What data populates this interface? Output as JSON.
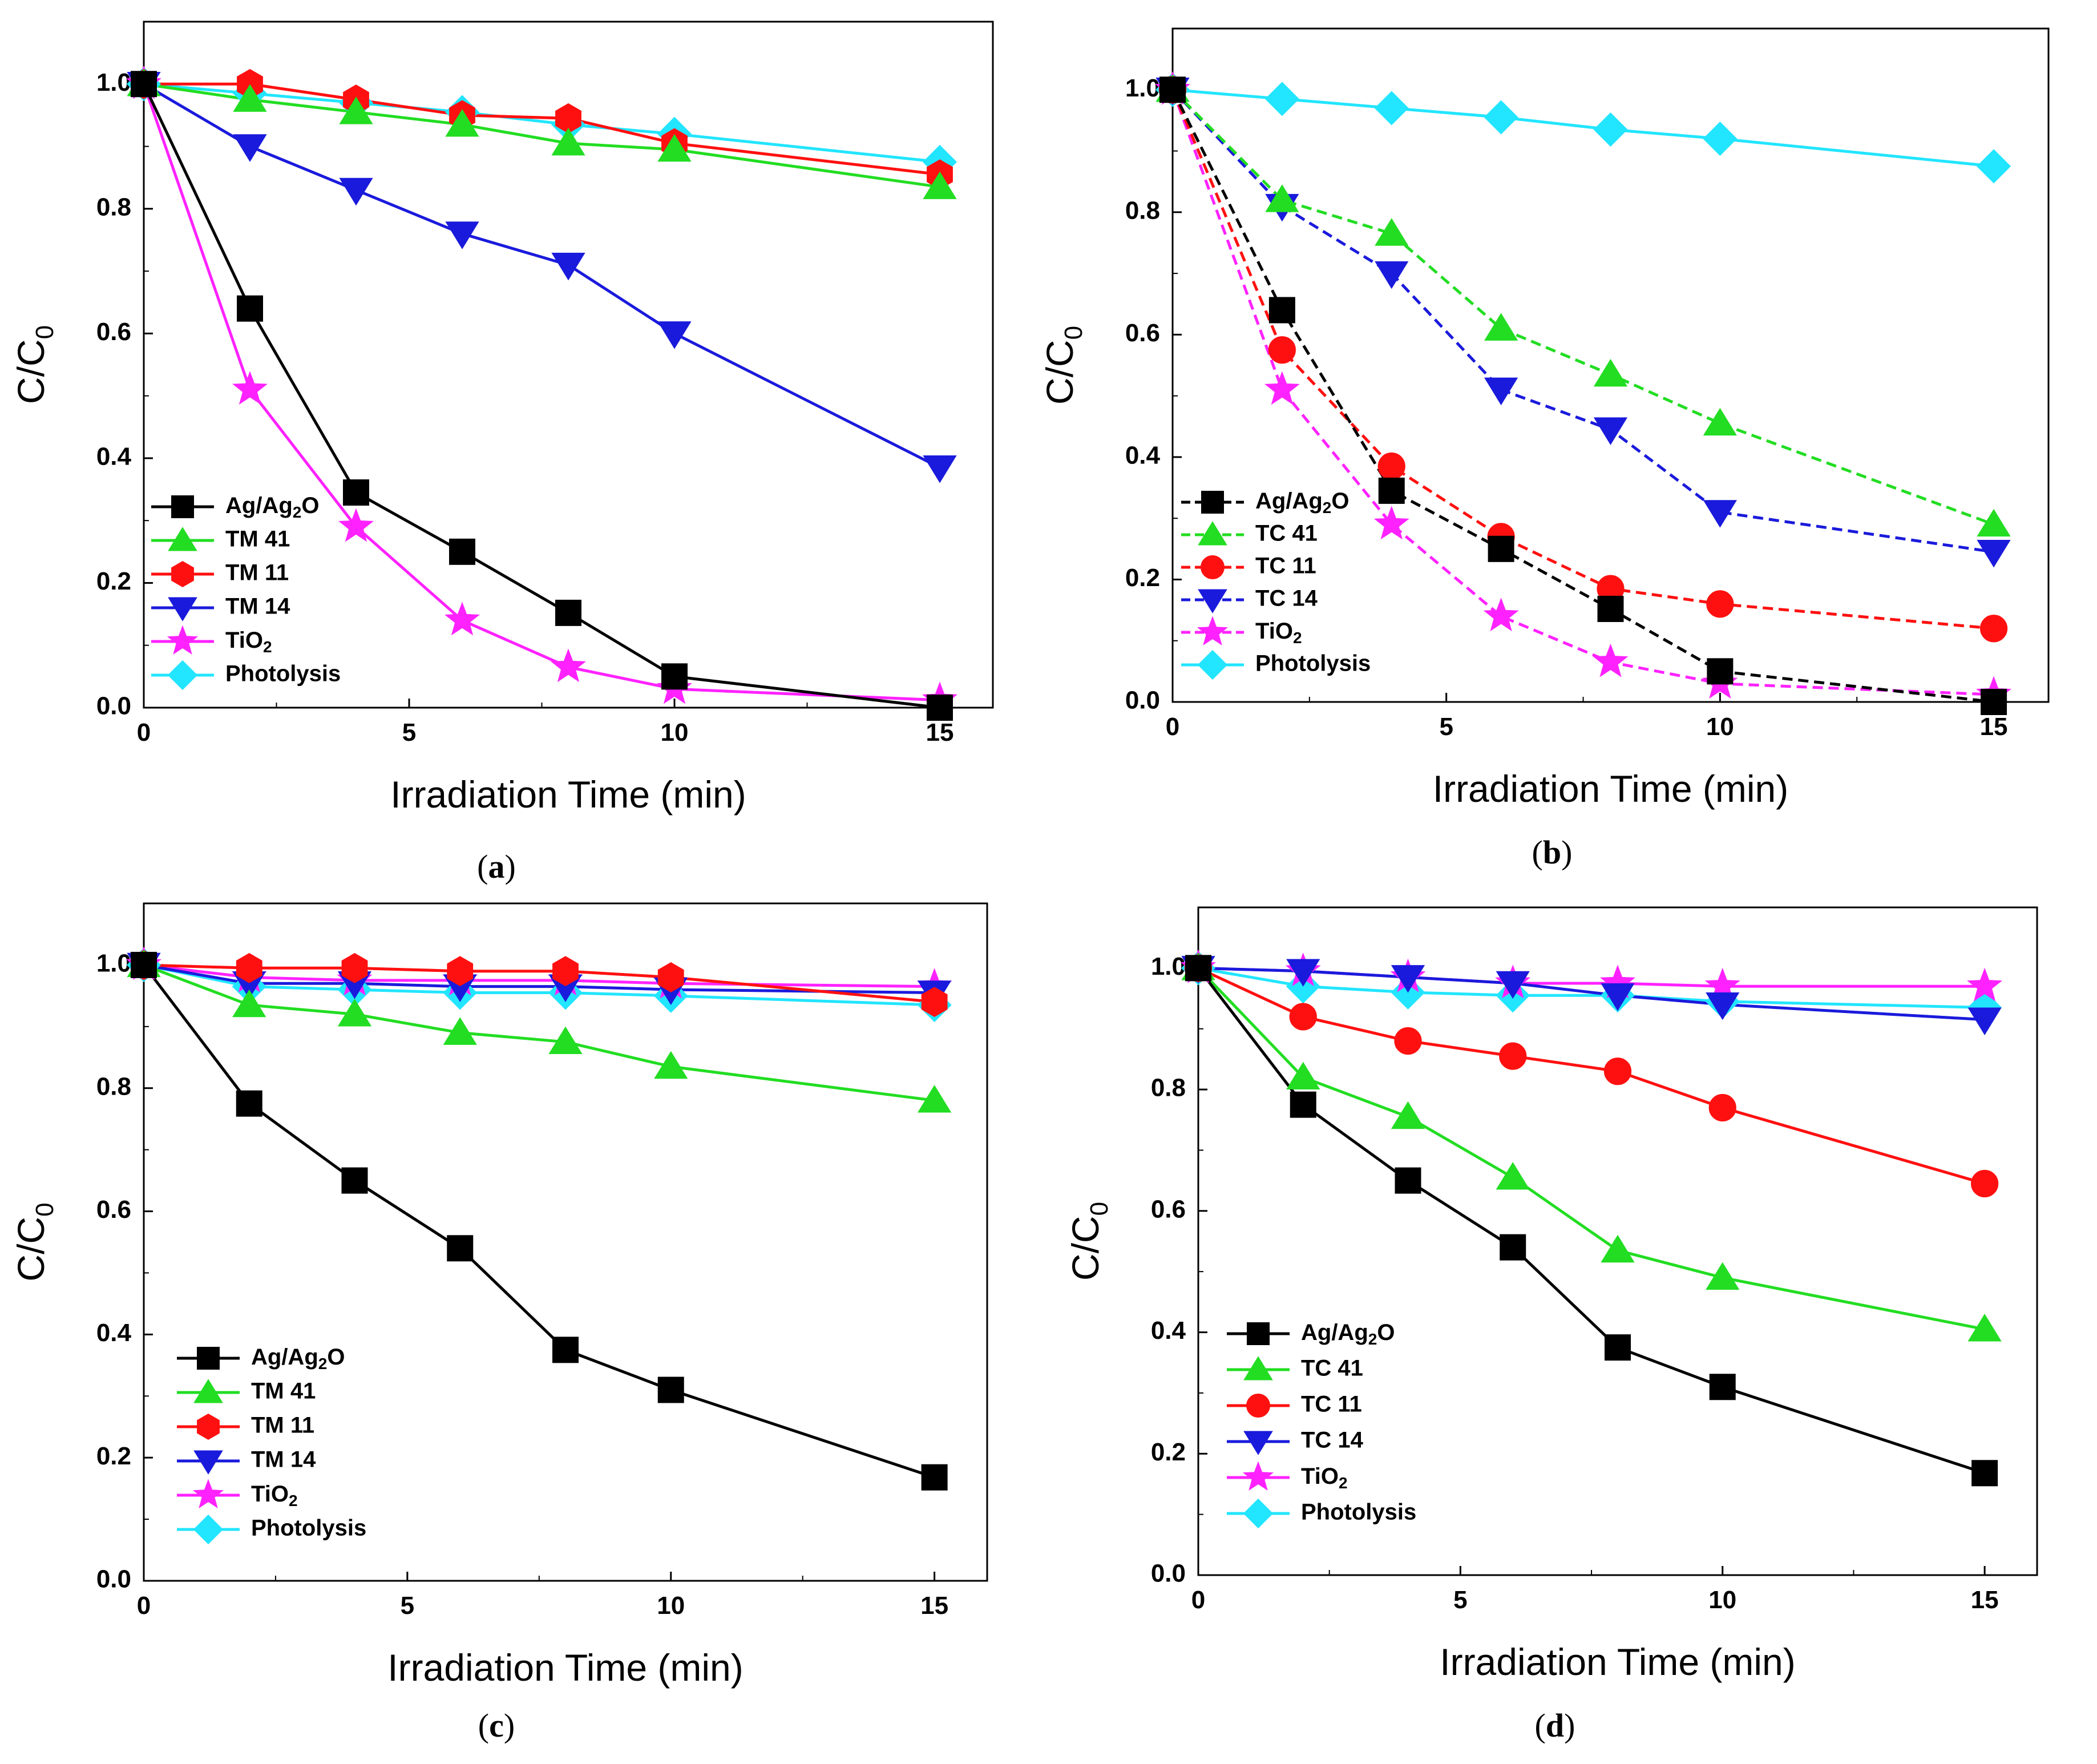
{
  "figure": {
    "background": "#ffffff"
  },
  "chart_data": [
    {
      "type": "line",
      "panel_label": "a",
      "xlabel": "Irradiation Time (min)",
      "ylabel": "C/C0",
      "xlim": [
        0,
        16
      ],
      "ylim": [
        0,
        1.1
      ],
      "xticks": [
        0,
        5,
        10,
        15
      ],
      "yticks": [
        0.0,
        0.2,
        0.4,
        0.6,
        0.8,
        1.0
      ],
      "legend_position": "bottom-left",
      "x": [
        0,
        2,
        4,
        6,
        8,
        10,
        15
      ],
      "series": [
        {
          "name": "Ag/Ag2O",
          "color": "#000000",
          "marker": "square",
          "values": [
            1.0,
            0.64,
            0.345,
            0.25,
            0.152,
            0.05,
            0.0
          ]
        },
        {
          "name": "TM 41",
          "color": "#22dd22",
          "marker": "triangle-up",
          "values": [
            1.0,
            0.975,
            0.955,
            0.935,
            0.905,
            0.895,
            0.835
          ]
        },
        {
          "name": "TM 11",
          "color": "#ff1010",
          "marker": "hexagon",
          "values": [
            1.0,
            1.0,
            0.975,
            0.95,
            0.945,
            0.905,
            0.855
          ]
        },
        {
          "name": "TM 14",
          "color": "#1a1adc",
          "marker": "triangle-down",
          "values": [
            1.0,
            0.9,
            0.83,
            0.76,
            0.71,
            0.6,
            0.385
          ]
        },
        {
          "name": "TiO2",
          "color": "#ff22ff",
          "marker": "star",
          "values": [
            1.0,
            0.51,
            0.29,
            0.14,
            0.065,
            0.03,
            0.012
          ]
        },
        {
          "name": "Photolysis",
          "color": "#22e5ff",
          "marker": "diamond",
          "values": [
            1.0,
            0.985,
            0.97,
            0.955,
            0.935,
            0.92,
            0.875
          ]
        }
      ]
    },
    {
      "type": "line",
      "panel_label": "b",
      "xlabel": "Irradiation Time (min)",
      "ylabel": "C/C0",
      "xlim": [
        0,
        16
      ],
      "ylim": [
        0,
        1.1
      ],
      "xticks": [
        0,
        5,
        10,
        15
      ],
      "yticks": [
        0.0,
        0.2,
        0.4,
        0.6,
        0.8,
        1.0
      ],
      "legend_position": "bottom-left",
      "x": [
        0,
        2,
        4,
        6,
        8,
        10,
        15
      ],
      "series": [
        {
          "name": "Ag/Ag2O",
          "color": "#000000",
          "marker": "square",
          "dashed": true,
          "values": [
            1.0,
            0.64,
            0.345,
            0.25,
            0.152,
            0.05,
            0.0
          ]
        },
        {
          "name": "TC 41",
          "color": "#22dd22",
          "marker": "triangle-up",
          "dashed": true,
          "values": [
            1.0,
            0.82,
            0.765,
            0.61,
            0.535,
            0.455,
            0.29
          ]
        },
        {
          "name": "TC 11",
          "color": "#ff1010",
          "marker": "circle",
          "dashed": true,
          "values": [
            1.0,
            0.575,
            0.385,
            0.27,
            0.185,
            0.16,
            0.12
          ]
        },
        {
          "name": "TC 14",
          "color": "#1a1adc",
          "marker": "triangle-down",
          "dashed": true,
          "values": [
            1.0,
            0.81,
            0.7,
            0.51,
            0.445,
            0.31,
            0.245
          ]
        },
        {
          "name": "TiO2",
          "color": "#ff22ff",
          "marker": "star",
          "dashed": true,
          "values": [
            1.0,
            0.51,
            0.29,
            0.14,
            0.065,
            0.03,
            0.012
          ]
        },
        {
          "name": "Photolysis",
          "color": "#22e5ff",
          "marker": "diamond",
          "values": [
            1.0,
            0.985,
            0.97,
            0.955,
            0.935,
            0.92,
            0.875
          ]
        }
      ]
    },
    {
      "type": "line",
      "panel_label": "c",
      "xlabel": "Irradiation Time (min)",
      "ylabel": "C/C0",
      "xlim": [
        0,
        16
      ],
      "ylim": [
        0,
        1.1
      ],
      "xticks": [
        0,
        5,
        10,
        15
      ],
      "yticks": [
        0.0,
        0.2,
        0.4,
        0.6,
        0.8,
        1.0
      ],
      "legend_position": "bottom-left",
      "x": [
        0,
        2,
        4,
        6,
        8,
        10,
        15
      ],
      "series": [
        {
          "name": "Ag/Ag2O",
          "color": "#000000",
          "marker": "square",
          "values": [
            1.0,
            0.775,
            0.65,
            0.54,
            0.375,
            0.31,
            0.168
          ]
        },
        {
          "name": "TM 41",
          "color": "#22dd22",
          "marker": "triangle-up",
          "values": [
            1.0,
            0.935,
            0.92,
            0.89,
            0.875,
            0.835,
            0.78
          ]
        },
        {
          "name": "TM 11",
          "color": "#ff1010",
          "marker": "hexagon",
          "values": [
            1.0,
            0.995,
            0.995,
            0.99,
            0.99,
            0.98,
            0.94
          ]
        },
        {
          "name": "TM 14",
          "color": "#1a1adc",
          "marker": "triangle-down",
          "values": [
            1.0,
            0.97,
            0.97,
            0.965,
            0.965,
            0.96,
            0.955
          ]
        },
        {
          "name": "TiO2",
          "color": "#ff22ff",
          "marker": "star",
          "values": [
            1.0,
            0.98,
            0.975,
            0.975,
            0.975,
            0.97,
            0.965
          ]
        },
        {
          "name": "Photolysis",
          "color": "#22e5ff",
          "marker": "diamond",
          "values": [
            1.0,
            0.965,
            0.96,
            0.955,
            0.955,
            0.95,
            0.935
          ]
        }
      ]
    },
    {
      "type": "line",
      "panel_label": "d",
      "xlabel": "Irradiation Time (min)",
      "ylabel": "C/C0",
      "xlim": [
        0,
        16
      ],
      "ylim": [
        0,
        1.1
      ],
      "xticks": [
        0,
        5,
        10,
        15
      ],
      "yticks": [
        0.0,
        0.2,
        0.4,
        0.6,
        0.8,
        1.0
      ],
      "legend_position": "bottom-left",
      "x": [
        0,
        2,
        4,
        6,
        8,
        10,
        15
      ],
      "series": [
        {
          "name": "Ag/Ag2O",
          "color": "#000000",
          "marker": "square",
          "values": [
            1.0,
            0.775,
            0.65,
            0.54,
            0.375,
            0.31,
            0.168
          ]
        },
        {
          "name": "TC 41",
          "color": "#22dd22",
          "marker": "triangle-up",
          "values": [
            1.0,
            0.82,
            0.755,
            0.655,
            0.535,
            0.49,
            0.405
          ]
        },
        {
          "name": "TC 11",
          "color": "#ff1010",
          "marker": "circle",
          "values": [
            1.0,
            0.92,
            0.88,
            0.855,
            0.83,
            0.77,
            0.645
          ]
        },
        {
          "name": "TC 14",
          "color": "#1a1adc",
          "marker": "triangle-down",
          "values": [
            1.0,
            0.995,
            0.985,
            0.975,
            0.955,
            0.94,
            0.915
          ]
        },
        {
          "name": "TiO2",
          "color": "#ff22ff",
          "marker": "star",
          "values": [
            1.0,
            0.995,
            0.985,
            0.975,
            0.975,
            0.97,
            0.97
          ]
        },
        {
          "name": "Photolysis",
          "color": "#22e5ff",
          "marker": "diamond",
          "values": [
            1.0,
            0.97,
            0.96,
            0.955,
            0.955,
            0.945,
            0.935
          ]
        }
      ]
    }
  ]
}
